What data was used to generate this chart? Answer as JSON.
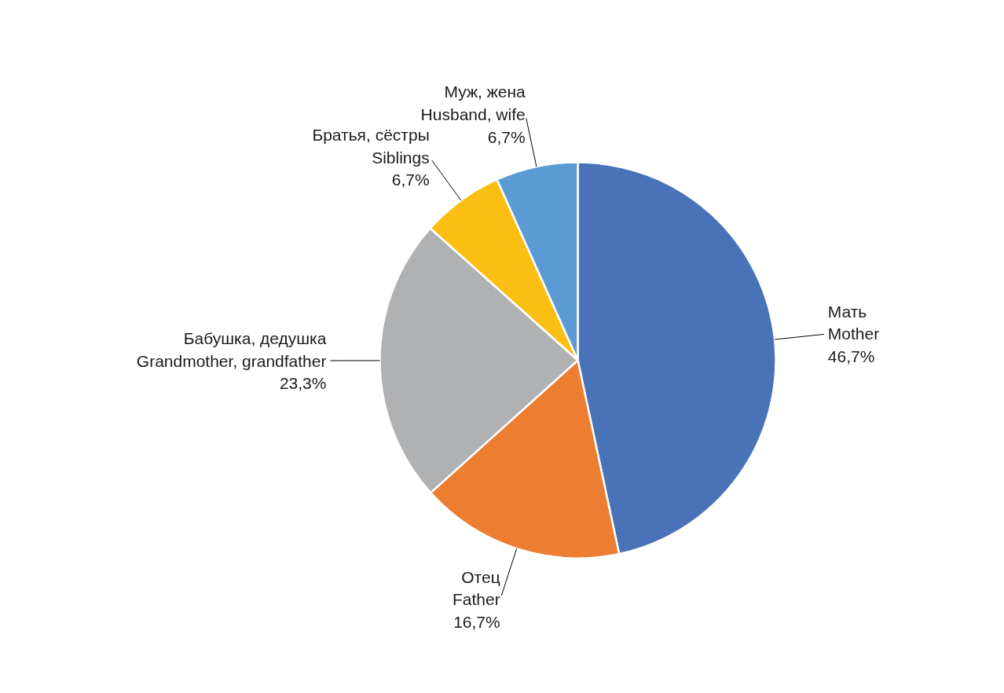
{
  "chart_data": {
    "type": "pie",
    "categories": [
      "Мать\nMother",
      "Отец\nFather",
      "Бабушка, дедушка\nGrandmother, grandfather",
      "Братья, сёстры\nSiblings",
      "Муж, жена\nHusband, wife"
    ],
    "values": [
      46.7,
      16.7,
      23.3,
      6.7,
      6.7
    ],
    "colors": [
      "#4a72b8",
      "#ed7d31",
      "#b0b1b3",
      "#fbbf14",
      "#5b9bd5"
    ],
    "value_labels": [
      "46,7%",
      "16,7%",
      "23,3%",
      "6,7%",
      "6,7%"
    ]
  }
}
